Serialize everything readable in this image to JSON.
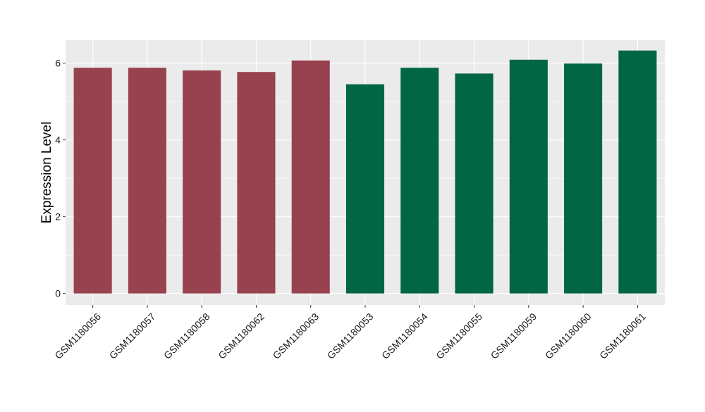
{
  "chart_data": {
    "type": "bar",
    "title": "",
    "xlabel": "",
    "ylabel": "Expression Level",
    "ylim": [
      -0.3,
      6.6
    ],
    "yticks": [
      0,
      2,
      4,
      6
    ],
    "grid": true,
    "legend": "none",
    "categories": [
      "GSM1180056",
      "GSM1180057",
      "GSM1180058",
      "GSM1180062",
      "GSM1180063",
      "GSM1180053",
      "GSM1180054",
      "GSM1180055",
      "GSM1180059",
      "GSM1180060",
      "GSM1180061"
    ],
    "values": [
      5.88,
      5.88,
      5.81,
      5.77,
      6.07,
      5.45,
      5.88,
      5.73,
      6.09,
      5.99,
      6.33
    ],
    "bar_colors": [
      "#98414f",
      "#98414f",
      "#98414f",
      "#98414f",
      "#98414f",
      "#006644",
      "#006644",
      "#006644",
      "#006644",
      "#006644",
      "#006644"
    ],
    "panel_background": "#ebebeb",
    "grid_color": "#ffffff"
  }
}
